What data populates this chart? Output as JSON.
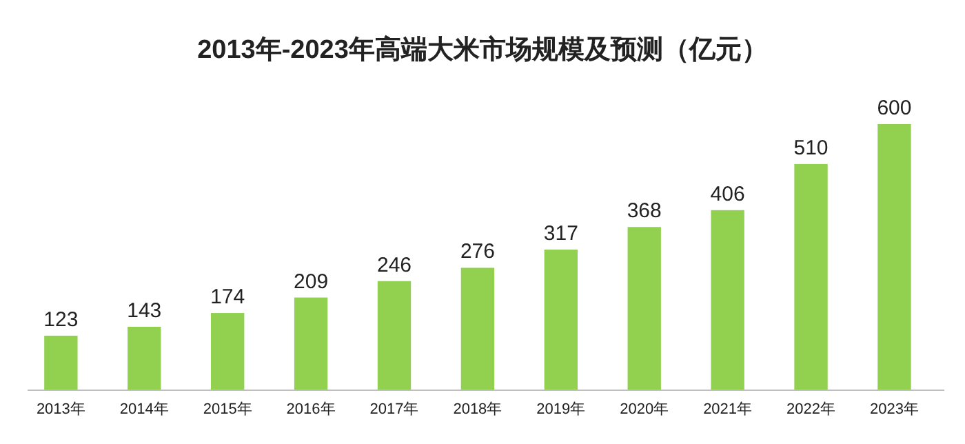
{
  "chart_data": {
    "type": "bar",
    "title": "2013年-2023年高端大米市场规模及预测（亿元）",
    "categories": [
      "2013年",
      "2014年",
      "2015年",
      "2016年",
      "2017年",
      "2018年",
      "2019年",
      "2020年",
      "2021年",
      "2022年",
      "2023年"
    ],
    "values": [
      123,
      143,
      174,
      209,
      246,
      276,
      317,
      368,
      406,
      510,
      600
    ],
    "color": "#92d050",
    "data_labels": true
  }
}
